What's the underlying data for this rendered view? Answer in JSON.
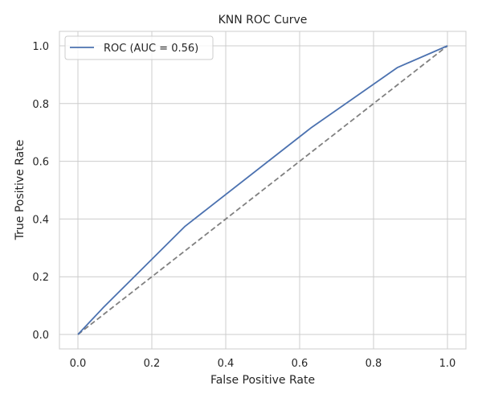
{
  "chart_data": {
    "type": "line",
    "title": "KNN ROC Curve",
    "xlabel": "False Positive Rate",
    "ylabel": "True Positive Rate",
    "xlim": [
      -0.05,
      1.05
    ],
    "ylim": [
      -0.05,
      1.05
    ],
    "x_ticks": [
      "0.0",
      "0.2",
      "0.4",
      "0.6",
      "0.8",
      "1.0"
    ],
    "y_ticks": [
      "0.0",
      "0.2",
      "0.4",
      "0.6",
      "0.8",
      "1.0"
    ],
    "grid": true,
    "legend_position": "upper-left",
    "series": [
      {
        "name": "ROC (AUC = 0.56)",
        "color": "#4c72b0",
        "style": "solid",
        "x": [
          0.0,
          0.07,
          0.29,
          0.63,
          0.865,
          1.0
        ],
        "y": [
          0.0,
          0.095,
          0.375,
          0.715,
          0.925,
          1.0
        ]
      },
      {
        "color": "#808080",
        "style": "dashed",
        "x": [
          0.0,
          1.0
        ],
        "y": [
          0.0,
          1.0
        ]
      }
    ]
  }
}
